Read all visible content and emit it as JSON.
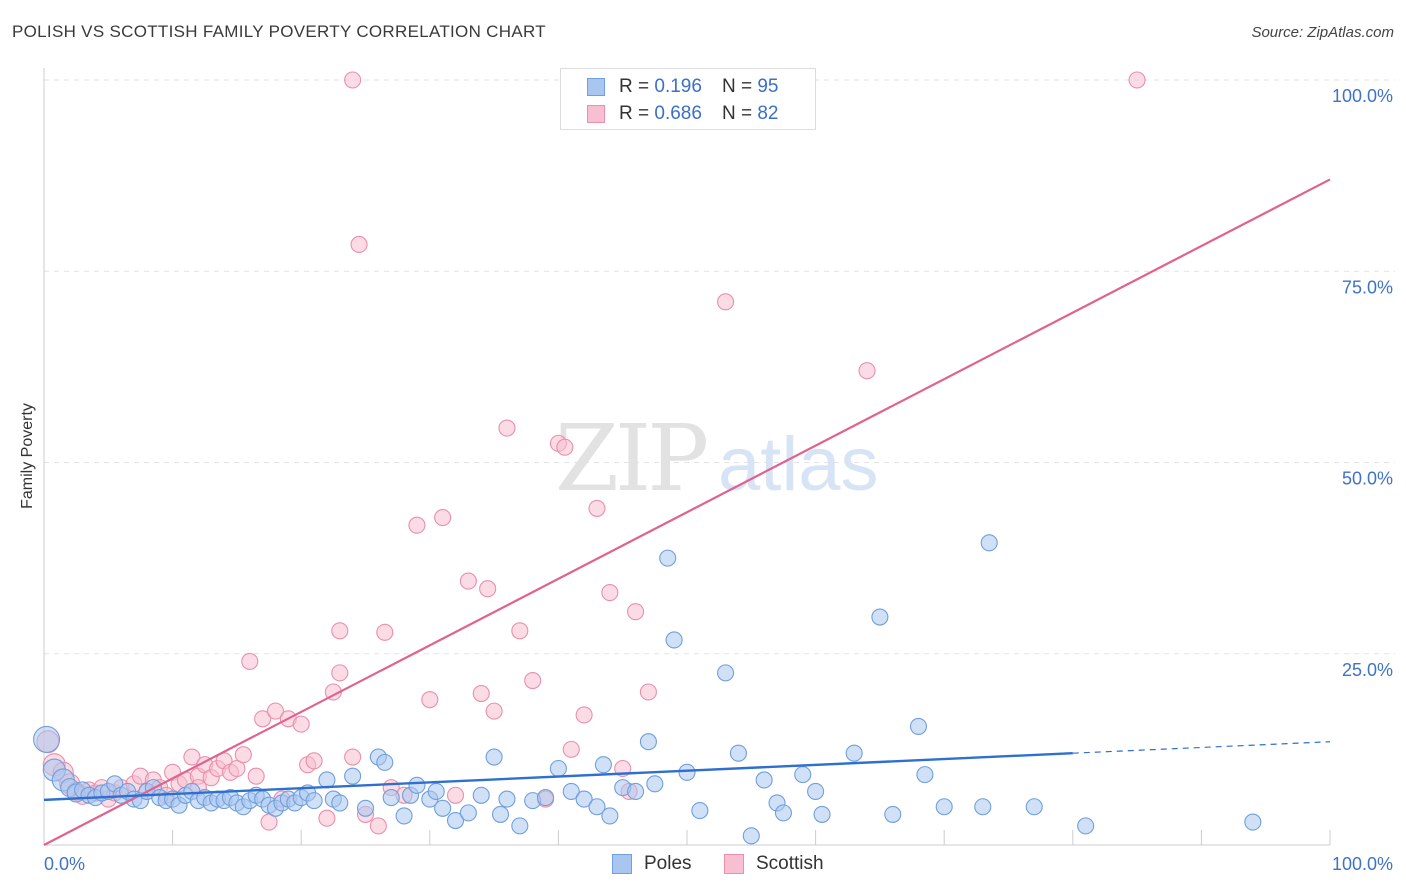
{
  "title": "POLISH VS SCOTTISH FAMILY POVERTY CORRELATION CHART",
  "source": "Source: ZipAtlas.com",
  "watermark": {
    "zip": "ZIP",
    "atlas": "atlas"
  },
  "legend": {
    "rows": [
      {
        "r_label": "R =",
        "r_value": "0.196",
        "n_label": "N =",
        "n_value": "95"
      },
      {
        "r_label": "R =",
        "r_value": "0.686",
        "n_label": "N =",
        "n_value": "82"
      }
    ]
  },
  "bottom_legend": [
    "Poles",
    "Scottish"
  ],
  "colors": {
    "blue_fill": "#a9c6f0",
    "blue_stroke": "#6f9fdc",
    "blue_line": "#2f6fcf",
    "pink_fill": "#f7bfd0",
    "pink_stroke": "#ea8fac",
    "pink_line": "#e0628e",
    "tick_label": "#3f72c8",
    "grid": "#e3e3e3"
  },
  "chart_data": {
    "type": "scatter",
    "title": "POLISH VS SCOTTISH FAMILY POVERTY CORRELATION CHART",
    "xlabel": "",
    "ylabel": "Family Poverty",
    "xlim": [
      0,
      100
    ],
    "ylim": [
      0,
      100
    ],
    "x_tick_labels": [
      "0.0%",
      "100.0%"
    ],
    "y_tick_labels": [
      "25.0%",
      "50.0%",
      "75.0%",
      "100.0%"
    ],
    "y_ticks": [
      25,
      50,
      75,
      100
    ],
    "grid": true,
    "legend_position": "top-center",
    "series": [
      {
        "name": "Poles",
        "color": "#a9c6f0",
        "trend": {
          "x": [
            0,
            80
          ],
          "y": [
            5.9,
            12.0
          ],
          "dashed_to": [
            100,
            13.5
          ]
        },
        "points": [
          [
            0.2,
            13.8,
            12
          ],
          [
            0.8,
            9.8,
            10
          ],
          [
            1.5,
            8.5,
            10
          ],
          [
            2,
            7.5,
            8
          ],
          [
            2.5,
            6.8,
            8
          ],
          [
            3,
            7.2,
            7
          ],
          [
            3.5,
            6.5,
            7
          ],
          [
            4,
            6.2,
            7
          ],
          [
            4.5,
            6.8,
            7
          ],
          [
            5,
            7.0,
            7
          ],
          [
            5.5,
            8.0,
            7
          ],
          [
            6,
            6.5,
            7
          ],
          [
            6.5,
            7.0,
            7
          ],
          [
            7,
            6.0,
            7
          ],
          [
            7.5,
            5.8,
            7
          ],
          [
            8,
            7.0,
            7
          ],
          [
            8.5,
            7.5,
            7
          ],
          [
            9,
            6.2,
            7
          ],
          [
            9.5,
            5.8,
            7
          ],
          [
            10,
            6.0,
            7
          ],
          [
            10.5,
            5.2,
            7
          ],
          [
            11,
            6.5,
            7
          ],
          [
            11.5,
            7.0,
            7
          ],
          [
            12,
            5.8,
            7
          ],
          [
            12.5,
            6.2,
            7
          ],
          [
            13,
            5.5,
            7
          ],
          [
            13.5,
            6.0,
            7
          ],
          [
            14,
            5.8,
            7
          ],
          [
            14.5,
            6.2,
            7
          ],
          [
            15,
            5.5,
            7
          ],
          [
            15.5,
            5.0,
            7
          ],
          [
            16,
            5.8,
            7
          ],
          [
            16.5,
            6.5,
            7
          ],
          [
            17,
            6.0,
            7
          ],
          [
            17.5,
            5.2,
            7
          ],
          [
            18,
            4.8,
            7
          ],
          [
            18.5,
            5.5,
            7
          ],
          [
            19,
            6.0,
            7
          ],
          [
            19.5,
            5.5,
            7
          ],
          [
            20,
            6.2,
            7
          ],
          [
            20.5,
            6.8,
            7
          ],
          [
            21,
            5.8,
            7
          ],
          [
            22,
            8.5,
            7
          ],
          [
            22.5,
            6.0,
            7
          ],
          [
            23,
            5.5,
            7
          ],
          [
            24,
            9.0,
            7
          ],
          [
            25,
            4.8,
            7
          ],
          [
            26,
            11.5,
            7
          ],
          [
            26.5,
            10.8,
            7
          ],
          [
            27,
            6.2,
            7
          ],
          [
            28,
            3.8,
            7
          ],
          [
            28.5,
            6.5,
            7
          ],
          [
            29,
            7.8,
            7
          ],
          [
            30,
            6.0,
            7
          ],
          [
            30.5,
            7.0,
            7
          ],
          [
            31,
            4.8,
            7
          ],
          [
            32,
            3.2,
            7
          ],
          [
            33,
            4.2,
            7
          ],
          [
            34,
            6.5,
            7
          ],
          [
            35,
            11.5,
            7
          ],
          [
            35.5,
            4.0,
            7
          ],
          [
            36,
            6.0,
            7
          ],
          [
            37,
            2.5,
            7
          ],
          [
            38,
            5.8,
            7
          ],
          [
            39,
            6.2,
            7
          ],
          [
            40,
            10.0,
            7
          ],
          [
            41,
            7.0,
            7
          ],
          [
            42,
            6.0,
            7
          ],
          [
            43,
            5.0,
            7
          ],
          [
            43.5,
            10.5,
            7
          ],
          [
            44,
            3.8,
            7
          ],
          [
            45,
            7.5,
            7
          ],
          [
            46,
            7.0,
            7
          ],
          [
            47,
            13.5,
            7
          ],
          [
            47.5,
            8.0,
            7
          ],
          [
            48.5,
            37.5,
            7
          ],
          [
            49,
            26.8,
            7
          ],
          [
            50,
            9.5,
            7
          ],
          [
            51,
            4.5,
            7
          ],
          [
            53,
            22.5,
            7
          ],
          [
            54,
            12.0,
            7
          ],
          [
            55,
            1.2,
            7
          ],
          [
            56,
            8.5,
            7
          ],
          [
            57,
            5.5,
            7
          ],
          [
            57.5,
            4.2,
            7
          ],
          [
            59,
            9.2,
            7
          ],
          [
            60,
            7.0,
            7
          ],
          [
            60.5,
            4.0,
            7
          ],
          [
            63,
            12.0,
            7
          ],
          [
            65,
            29.8,
            7
          ],
          [
            66,
            4.0,
            7
          ],
          [
            68,
            15.5,
            7
          ],
          [
            68.5,
            9.2,
            7
          ],
          [
            70,
            5.0,
            7
          ],
          [
            73,
            5.0,
            7
          ],
          [
            73.5,
            39.5,
            7
          ],
          [
            77,
            5.0,
            7
          ],
          [
            81,
            2.5,
            7
          ],
          [
            94,
            3.0,
            7
          ]
        ]
      },
      {
        "name": "Scottish",
        "color": "#f7bfd0",
        "trend": {
          "x": [
            0,
            100
          ],
          "y": [
            0,
            87
          ]
        },
        "points": [
          [
            0.3,
            13.5,
            10
          ],
          [
            0.8,
            10.5,
            10
          ],
          [
            1.5,
            9.5,
            9
          ],
          [
            2,
            8.0,
            9
          ],
          [
            2.5,
            7.0,
            8
          ],
          [
            3,
            6.5,
            8
          ],
          [
            3.5,
            7.2,
            7
          ],
          [
            4,
            6.8,
            7
          ],
          [
            4.5,
            7.5,
            7
          ],
          [
            5,
            6.0,
            7
          ],
          [
            5.5,
            6.8,
            7
          ],
          [
            6,
            7.5,
            7
          ],
          [
            7,
            8.0,
            7
          ],
          [
            7.5,
            9.0,
            7
          ],
          [
            8,
            7.0,
            7
          ],
          [
            8.5,
            8.5,
            7
          ],
          [
            9,
            7.5,
            7
          ],
          [
            9.5,
            6.5,
            7
          ],
          [
            10,
            9.5,
            7
          ],
          [
            10.5,
            8.0,
            7
          ],
          [
            11,
            8.5,
            7
          ],
          [
            11.5,
            11.5,
            7
          ],
          [
            12,
            9.0,
            7
          ],
          [
            12.5,
            10.5,
            7
          ],
          [
            13,
            8.8,
            7
          ],
          [
            13.5,
            10.0,
            7
          ],
          [
            14,
            11.0,
            7
          ],
          [
            14.5,
            9.5,
            7
          ],
          [
            15,
            10.0,
            7
          ],
          [
            15.5,
            11.8,
            7
          ],
          [
            16,
            24.0,
            7
          ],
          [
            16.5,
            9.0,
            7
          ],
          [
            17,
            16.5,
            7
          ],
          [
            17.5,
            3.0,
            7
          ],
          [
            18,
            17.5,
            7
          ],
          [
            18.5,
            6.0,
            7
          ],
          [
            19,
            16.5,
            7
          ],
          [
            20,
            15.8,
            7
          ],
          [
            20.5,
            10.5,
            7
          ],
          [
            21,
            11.0,
            7
          ],
          [
            22,
            3.5,
            7
          ],
          [
            22.5,
            20.0,
            7
          ],
          [
            23,
            22.5,
            7
          ],
          [
            23,
            28.0,
            7
          ],
          [
            24,
            11.5,
            7
          ],
          [
            24.5,
            78.5,
            7
          ],
          [
            25,
            4.0,
            7
          ],
          [
            26,
            2.5,
            7
          ],
          [
            26.5,
            27.8,
            7
          ],
          [
            27,
            7.5,
            7
          ],
          [
            28,
            6.5,
            7
          ],
          [
            29,
            41.8,
            7
          ],
          [
            30,
            19.0,
            7
          ],
          [
            31,
            42.8,
            7
          ],
          [
            32,
            6.5,
            7
          ],
          [
            33,
            34.5,
            7
          ],
          [
            34,
            19.8,
            7
          ],
          [
            34.5,
            33.5,
            7
          ],
          [
            35,
            17.5,
            7
          ],
          [
            36,
            54.5,
            7
          ],
          [
            37,
            28.0,
            7
          ],
          [
            38,
            21.5,
            7
          ],
          [
            39,
            6.0,
            7
          ],
          [
            40,
            52.5,
            7
          ],
          [
            40.5,
            52.0,
            7
          ],
          [
            41,
            12.5,
            7
          ],
          [
            42,
            17.0,
            7
          ],
          [
            43,
            44.0,
            7
          ],
          [
            44,
            33.0,
            7
          ],
          [
            45,
            10.0,
            7
          ],
          [
            45.5,
            7.0,
            7
          ],
          [
            46,
            30.5,
            7
          ],
          [
            47,
            20.0,
            7
          ],
          [
            53,
            71.0,
            7
          ],
          [
            64,
            62.0,
            7
          ],
          [
            85,
            100.0,
            7
          ],
          [
            24,
            100.0,
            7
          ],
          [
            12,
            7.5,
            7
          ]
        ]
      }
    ]
  }
}
